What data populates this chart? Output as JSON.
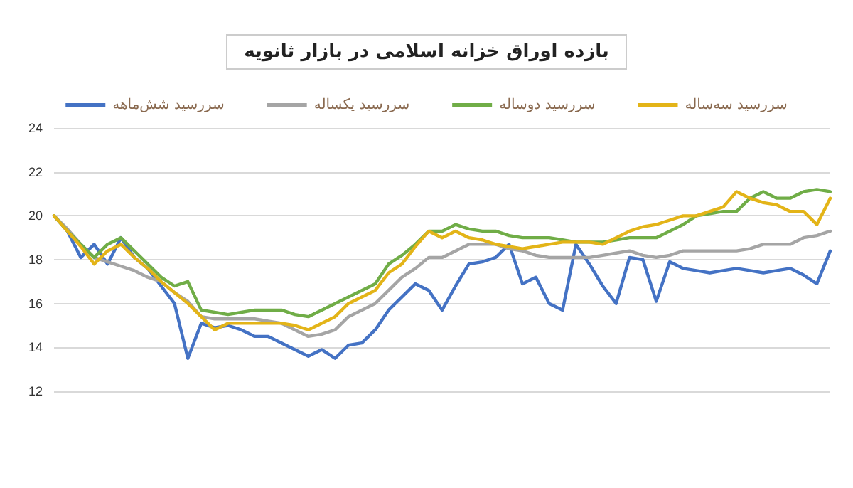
{
  "chart_data": {
    "type": "line",
    "title": "بازده اوراق خزانه اسلامی در بازار ثانویه",
    "categories": [
      null,
      null,
      null,
      null,
      null,
      null,
      null,
      null,
      null,
      null,
      null,
      null,
      null,
      null,
      null,
      null,
      null,
      null,
      null,
      null,
      null,
      null,
      null,
      null,
      null,
      null,
      null,
      null,
      null,
      null,
      null,
      null,
      null,
      null,
      null,
      null,
      null,
      null,
      null,
      null,
      null,
      null,
      null,
      null,
      null,
      null,
      null,
      null,
      null,
      null,
      null,
      null,
      null,
      null,
      null,
      null,
      null,
      null,
      null
    ],
    "ylim": [
      12,
      24
    ],
    "yticks": [
      12,
      14,
      16,
      18,
      20,
      22,
      24
    ],
    "grid": "y",
    "legend": "top",
    "marker": "none",
    "line_style": "solid",
    "series": [
      {
        "name": "سررسید شش‌ماهه",
        "color": "#4472c4",
        "values": [
          20.0,
          19.3,
          18.1,
          18.7,
          17.8,
          19.0,
          18.1,
          17.6,
          16.8,
          16.0,
          13.5,
          15.1,
          14.9,
          15.0,
          14.8,
          14.5,
          14.5,
          14.2,
          13.9,
          13.6,
          13.9,
          13.5,
          14.1,
          14.2,
          14.8,
          15.7,
          16.3,
          16.9,
          16.6,
          15.7,
          16.8,
          17.8,
          17.9,
          18.1,
          18.7,
          16.9,
          17.2,
          16.0,
          15.7,
          18.7,
          17.8,
          16.8,
          16.0,
          18.1,
          18.0,
          16.1,
          17.9,
          17.6,
          17.5,
          17.4,
          17.5,
          17.6,
          17.5,
          17.4,
          17.5,
          17.6,
          17.3,
          16.9,
          18.4
        ]
      },
      {
        "name": "سررسید یکساله",
        "color": "#a5a5a5",
        "values": [
          20.0,
          19.4,
          18.7,
          18.1,
          17.9,
          17.7,
          17.5,
          17.2,
          17.0,
          16.5,
          16.1,
          15.4,
          15.3,
          15.3,
          15.3,
          15.3,
          15.2,
          15.1,
          14.8,
          14.5,
          14.6,
          14.8,
          15.4,
          15.7,
          16.0,
          16.6,
          17.2,
          17.6,
          18.1,
          18.1,
          18.4,
          18.7,
          18.7,
          18.7,
          18.5,
          18.4,
          18.2,
          18.1,
          18.1,
          18.1,
          18.1,
          18.2,
          18.3,
          18.4,
          18.2,
          18.1,
          18.2,
          18.4,
          18.4,
          18.4,
          18.4,
          18.4,
          18.5,
          18.7,
          18.7,
          18.7,
          19.0,
          19.1,
          19.3
        ]
      },
      {
        "name": "سررسید دوساله",
        "color": "#70ad47",
        "values": [
          20.0,
          19.3,
          18.7,
          18.1,
          18.7,
          19.0,
          18.4,
          17.8,
          17.2,
          16.8,
          17.0,
          15.7,
          15.6,
          15.5,
          15.6,
          15.7,
          15.7,
          15.7,
          15.5,
          15.4,
          15.7,
          16.0,
          16.3,
          16.6,
          16.9,
          17.8,
          18.2,
          18.7,
          19.3,
          19.3,
          19.6,
          19.4,
          19.3,
          19.3,
          19.1,
          19.0,
          19.0,
          19.0,
          18.9,
          18.8,
          18.8,
          18.8,
          18.9,
          19.0,
          19.0,
          19.0,
          19.3,
          19.6,
          20.0,
          20.1,
          20.2,
          20.2,
          20.8,
          21.1,
          20.8,
          20.8,
          21.1,
          21.2,
          21.1
        ]
      },
      {
        "name": "سررسید سه‌ساله",
        "color": "#e3b418",
        "values": [
          20.0,
          19.3,
          18.6,
          17.8,
          18.4,
          18.7,
          18.1,
          17.6,
          17.0,
          16.5,
          16.0,
          15.4,
          14.8,
          15.1,
          15.1,
          15.1,
          15.1,
          15.1,
          15.0,
          14.8,
          15.1,
          15.4,
          16.0,
          16.3,
          16.6,
          17.4,
          17.8,
          18.6,
          19.3,
          19.0,
          19.3,
          19.0,
          18.9,
          18.7,
          18.6,
          18.5,
          18.6,
          18.7,
          18.8,
          18.8,
          18.8,
          18.7,
          19.0,
          19.3,
          19.5,
          19.6,
          19.8,
          20.0,
          20.0,
          20.2,
          20.4,
          21.1,
          20.8,
          20.6,
          20.5,
          20.2,
          20.2,
          19.6,
          20.8
        ]
      }
    ]
  }
}
